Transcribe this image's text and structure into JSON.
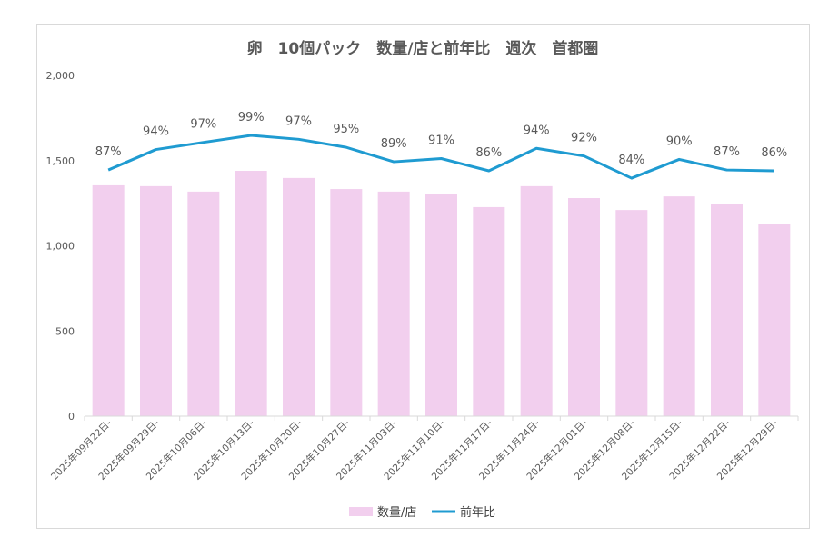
{
  "chart_data": {
    "type": "bar+line",
    "title": "卵　10個パック　数量/店と前年比　週次　首都圏",
    "categories": [
      "2025年09月22日-",
      "2025年09月29日-",
      "2025年10月06日-",
      "2025年10月13日-",
      "2025年10月20日-",
      "2025年10月27日-",
      "2025年11月03日-",
      "2025年11月10日-",
      "2025年11月17日-",
      "2025年11月24日-",
      "2025年12月01日-",
      "2025年12月08日-",
      "2025年12月15日-",
      "2025年12月22日-",
      "2025年12月29日-"
    ],
    "series": [
      {
        "name": "数量/店",
        "type": "bar",
        "color": "#f2cfee",
        "values": [
          1355,
          1350,
          1318,
          1440,
          1398,
          1333,
          1318,
          1303,
          1227,
          1350,
          1280,
          1210,
          1290,
          1248,
          1130
        ]
      },
      {
        "name": "前年比",
        "type": "line",
        "color": "#1f9bd1",
        "labels": [
          "87%",
          "94%",
          "97%",
          "99%",
          "97%",
          "95%",
          "89%",
          "91%",
          "86%",
          "94%",
          "92%",
          "84%",
          "90%",
          "87%",
          "86%"
        ]
      }
    ],
    "yaxis": {
      "min": 0,
      "max": 2000,
      "ticks": [
        0,
        500,
        1000,
        1500,
        2000
      ],
      "tick_labels": [
        "0",
        "500",
        "1,000",
        "1,500",
        "2,000"
      ]
    },
    "line_levels": [
      1445,
      1565,
      1607,
      1648,
      1625,
      1578,
      1493,
      1512,
      1440,
      1572,
      1527,
      1397,
      1507,
      1445,
      1440
    ],
    "legend_position": "bottom",
    "grid": false
  }
}
